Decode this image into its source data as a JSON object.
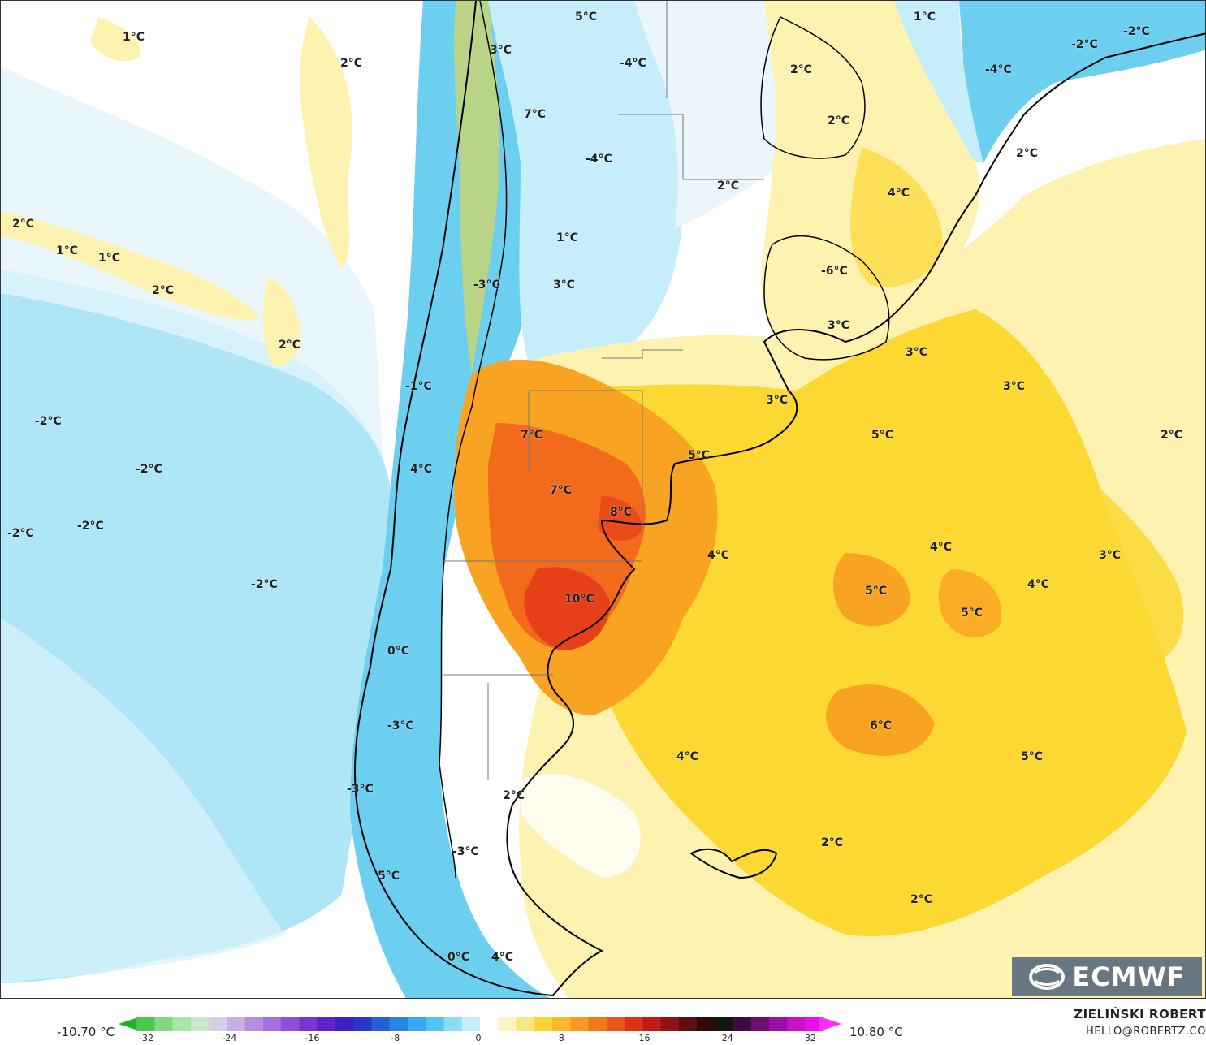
{
  "map": {
    "labels": [
      {
        "text": "1°C"
      },
      {
        "text": "2°C"
      },
      {
        "text": "5°C"
      },
      {
        "text": "3°C"
      },
      {
        "text": "-2°C"
      },
      {
        "text": "1°C"
      },
      {
        "text": "2°C"
      },
      {
        "text": "-2°C"
      },
      {
        "text": "-4°C"
      },
      {
        "text": "-4°C"
      },
      {
        "text": "7°C"
      },
      {
        "text": "-4°C"
      },
      {
        "text": "2°C"
      },
      {
        "text": "2°C"
      },
      {
        "text": "2°C"
      },
      {
        "text": "2°C"
      },
      {
        "text": "4°C"
      },
      {
        "text": "1°C"
      },
      {
        "text": "1°C"
      },
      {
        "text": "2°C"
      },
      {
        "text": "1°C"
      },
      {
        "text": "-6°C"
      },
      {
        "text": "-3°C"
      },
      {
        "text": "3°C"
      },
      {
        "text": "2°C"
      },
      {
        "text": "3°C"
      },
      {
        "text": "3°C"
      },
      {
        "text": "-1°C"
      },
      {
        "text": "3°C"
      },
      {
        "text": "3°C"
      },
      {
        "text": "-2°C"
      },
      {
        "text": "7°C"
      },
      {
        "text": "5°C"
      },
      {
        "text": "5°C"
      },
      {
        "text": "2°C"
      },
      {
        "text": "-2°C"
      },
      {
        "text": "4°C"
      },
      {
        "text": "7°C"
      },
      {
        "text": "8°C"
      },
      {
        "text": "-2°C"
      },
      {
        "text": "-2°C"
      },
      {
        "text": "4°C"
      },
      {
        "text": "4°C"
      },
      {
        "text": "3°C"
      },
      {
        "text": "-2°C"
      },
      {
        "text": "10°C"
      },
      {
        "text": "5°C"
      },
      {
        "text": "4°C"
      },
      {
        "text": "5°C"
      },
      {
        "text": "0°C"
      },
      {
        "text": "6°C"
      },
      {
        "text": "-3°C"
      },
      {
        "text": "4°C"
      },
      {
        "text": "5°C"
      },
      {
        "text": "-3°C"
      },
      {
        "text": "2°C"
      },
      {
        "text": "2°C"
      },
      {
        "text": "-3°C"
      },
      {
        "text": "5°C"
      },
      {
        "text": "2°C"
      },
      {
        "text": "0°C"
      },
      {
        "text": "4°C"
      }
    ]
  },
  "colors": {
    "ocean_cold": "#aee6f8",
    "ocean_cool": "#d8f2fb",
    "land_cold": "#6ccff0",
    "warm_light": "#fdf2b0",
    "warm_yellow": "#fcd832",
    "warm_orange": "#f9a322",
    "warm_deep": "#f26b1c",
    "warm_red": "#e5401a",
    "coast": "#000000",
    "border": "#777777"
  },
  "colorbar": {
    "min_label": "-10.70 °C",
    "max_label": "10.80 °C",
    "range": [
      -32,
      32
    ],
    "ticks": [
      {
        "value": -32,
        "label": "-32"
      },
      {
        "value": -24,
        "label": "-24"
      },
      {
        "value": -16,
        "label": "-16"
      },
      {
        "value": -8,
        "label": "-8"
      },
      {
        "value": 0,
        "label": "0"
      },
      {
        "value": 8,
        "label": "8"
      },
      {
        "value": 16,
        "label": "16"
      },
      {
        "value": 24,
        "label": "24"
      },
      {
        "value": 32,
        "label": "32"
      }
    ],
    "colors": [
      "#1fb31f",
      "#4cc84c",
      "#7fda7f",
      "#a8e3a8",
      "#c9e6c9",
      "#d8d0e8",
      "#c8b0e4",
      "#b58ee0",
      "#a26ddc",
      "#8f4fd6",
      "#7a35cf",
      "#5f22c8",
      "#3e1fc4",
      "#2a37cc",
      "#2660d8",
      "#2a86e4",
      "#35a8ee",
      "#52c4f2",
      "#8ddcf6",
      "#c6eefa",
      "#ffffff",
      "#fdf6c4",
      "#fce680",
      "#fcd33b",
      "#fbb828",
      "#f89a20",
      "#f4771b",
      "#ec5318",
      "#de3118",
      "#bf1c18",
      "#8f1414",
      "#5e0f10",
      "#2f0a0a",
      "#151515",
      "#3c0c3c",
      "#6e0e6e",
      "#9a10a0",
      "#c812c8",
      "#ea10ea",
      "#ff2cff"
    ]
  },
  "logo": {
    "text": "ECMWF"
  },
  "author": {
    "name": "ZIELIŃSKI ROBERT",
    "email": "HELLO@ROBERTZ.CO"
  }
}
